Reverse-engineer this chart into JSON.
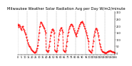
{
  "title": "Milwaukee Weather Solar Radiation Avg per Day W/m2/minute",
  "title_fontsize": 3.8,
  "line_color": "red",
  "line_style": "--",
  "line_width": 0.6,
  "marker": ".",
  "marker_size": 1.0,
  "background_color": "white",
  "grid_color": "#999999",
  "grid_style": "--",
  "grid_linewidth": 0.3,
  "tick_fontsize": 2.5,
  "ylabel_fontsize": 2.5,
  "ylim": [
    -10,
    310
  ],
  "yticks": [
    0,
    50,
    100,
    150,
    200,
    250,
    300
  ],
  "y_values": [
    215,
    195,
    210,
    200,
    185,
    175,
    195,
    200,
    180,
    170,
    155,
    140,
    120,
    100,
    80,
    65,
    50,
    45,
    35,
    25,
    20,
    15,
    10,
    5,
    5,
    10,
    20,
    35,
    60,
    100,
    150,
    200,
    230,
    225,
    215,
    205,
    195,
    185,
    170,
    155,
    20,
    15,
    10,
    20,
    50,
    90,
    130,
    160,
    175,
    180,
    170,
    155,
    20,
    15,
    10,
    20,
    60,
    100,
    140,
    170,
    185,
    190,
    175,
    160,
    20,
    15,
    10,
    20,
    50,
    90,
    130,
    160,
    185,
    200,
    210,
    215,
    210,
    200,
    185,
    170,
    155,
    140,
    125,
    155,
    170,
    185,
    200,
    215,
    225,
    230,
    235,
    225,
    215,
    200,
    185,
    170,
    150,
    130,
    110,
    90,
    20,
    15,
    10,
    5,
    20,
    50,
    90,
    130,
    160,
    180,
    185,
    175,
    155,
    130,
    100,
    70,
    45,
    25,
    15,
    10,
    8,
    5,
    3,
    2,
    5,
    8,
    12,
    15,
    18,
    20,
    18,
    15,
    12,
    10,
    8,
    5,
    3
  ],
  "num_points": 137,
  "num_xticks": 28,
  "num_vgrid": 10
}
